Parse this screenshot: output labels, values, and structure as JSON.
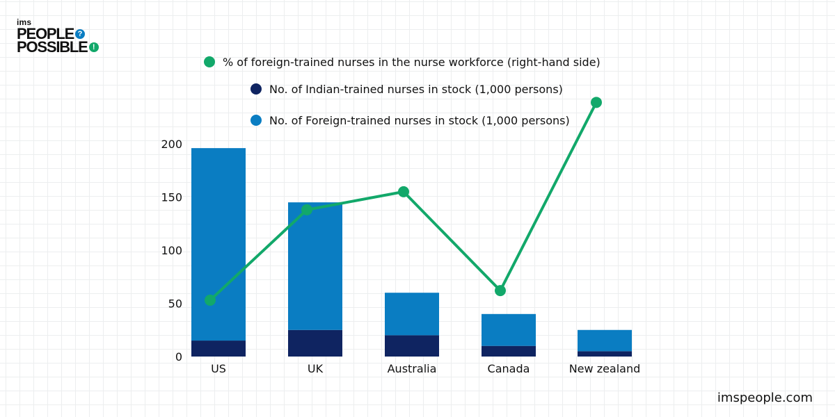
{
  "logo": {
    "small_text": "ims",
    "line1": "PEOPLE",
    "line1_badge": "?",
    "line2": "POSSIBLE",
    "line2_badge": "!"
  },
  "website": "imspeople.com",
  "colors": {
    "indian": "#0f2461",
    "foreign": "#0a7dc2",
    "line": "#12a86a",
    "text": "#111111"
  },
  "chart_data": {
    "type": "bar",
    "stacked": true,
    "categories": [
      "US",
      "UK",
      "Australia",
      "Canada",
      "New zealand"
    ],
    "series": [
      {
        "name": "No. of Indian-trained nurses in stock (1,000 persons)",
        "kind": "bar",
        "color": "#0f2461",
        "values": [
          15,
          25,
          20,
          10,
          5
        ]
      },
      {
        "name": "No. of Foreign-trained nurses in stock (1,000 persons)",
        "kind": "bar",
        "color": "#0a7dc2",
        "values": [
          181,
          120,
          40,
          30,
          20
        ]
      },
      {
        "name": "% of foreign-trained nurses in the nurse workforce (right-hand side)",
        "kind": "line",
        "axis": "right",
        "color": "#12a86a",
        "values": [
          53,
          138,
          155,
          62,
          239
        ]
      }
    ],
    "legend_order": [
      2,
      0,
      1
    ],
    "legend_position": "top",
    "ylim": [
      0,
      200
    ],
    "yticks": [
      "0",
      "50",
      "100",
      "150",
      "200"
    ],
    "xlabel": "",
    "ylabel": "",
    "grid": true
  }
}
